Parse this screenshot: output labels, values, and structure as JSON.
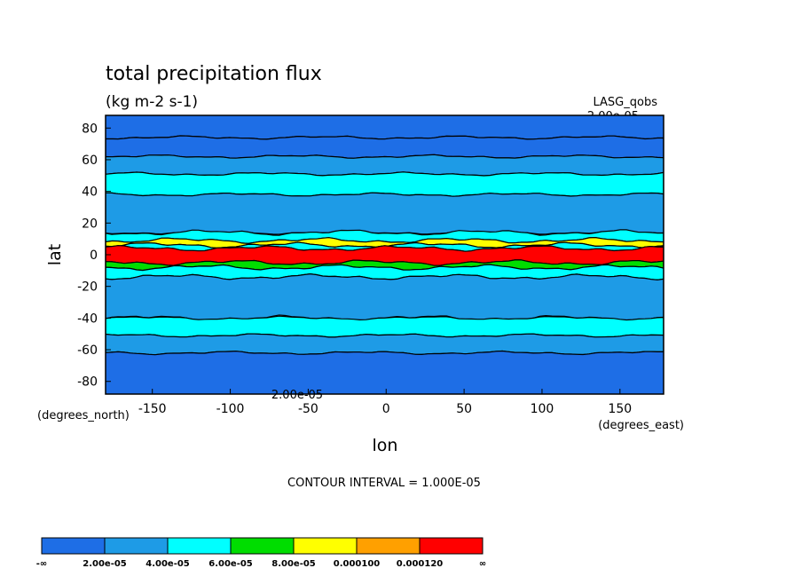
{
  "chart_data": {
    "type": "heatmap",
    "title": "total precipitation flux",
    "units": "(kg m-2 s-1)",
    "dataset": "LASG_qobs",
    "xlabel": "lon",
    "ylabel": "lat",
    "x_units": "(degrees_east)",
    "y_units": "(degrees_north)",
    "xlim": [
      -180,
      178
    ],
    "ylim": [
      -88,
      88
    ],
    "x_ticks": [
      "-150",
      "-100",
      "-50",
      "0",
      "50",
      "100",
      "150"
    ],
    "x_tick_values": [
      -150,
      -100,
      -50,
      0,
      50,
      100,
      150
    ],
    "y_ticks": [
      "80",
      "60",
      "40",
      "20",
      "0",
      "-20",
      "-40",
      "-60",
      "-80"
    ],
    "y_tick_values": [
      80,
      60,
      40,
      20,
      0,
      -20,
      -40,
      -60,
      -80
    ],
    "contour_interval_text": "CONTOUR INTERVAL = 1.000E-05",
    "max_label": "2.00e-05",
    "min_label": "2.00e-05",
    "colorbar": {
      "colors": [
        "#1e6ee6",
        "#1e9be6",
        "#00ffff",
        "#00dd00",
        "#ffff00",
        "#ffa000",
        "#ff0000"
      ],
      "labels": [
        "-∞",
        "2.00e-05",
        "4.00e-05",
        "6.00e-05",
        "8.00e-05",
        "0.000100",
        "0.000120",
        "∞"
      ]
    },
    "zonal_bands": [
      {
        "lat_from": 88,
        "lat_to": 74,
        "level": 0
      },
      {
        "lat_from": 74,
        "lat_to": 62,
        "level": 0
      },
      {
        "lat_from": 62,
        "lat_to": 51,
        "level": 1
      },
      {
        "lat_from": 51,
        "lat_to": 38,
        "level": 2
      },
      {
        "lat_from": 38,
        "lat_to": 14,
        "level": 1
      },
      {
        "lat_from": 14,
        "lat_to": 9,
        "level": 2
      },
      {
        "lat_from": 9,
        "lat_to": 6,
        "level": 4
      },
      {
        "lat_from": 6,
        "lat_to": 4,
        "level": 2
      },
      {
        "lat_from": 4,
        "lat_to": -5,
        "level": 6
      },
      {
        "lat_from": -5,
        "lat_to": -8,
        "level": 3
      },
      {
        "lat_from": -8,
        "lat_to": -14,
        "level": 2
      },
      {
        "lat_from": -14,
        "lat_to": -40,
        "level": 1
      },
      {
        "lat_from": -40,
        "lat_to": -51,
        "level": 2
      },
      {
        "lat_from": -51,
        "lat_to": -62,
        "level": 1
      },
      {
        "lat_from": -62,
        "lat_to": -88,
        "level": 0
      }
    ]
  }
}
